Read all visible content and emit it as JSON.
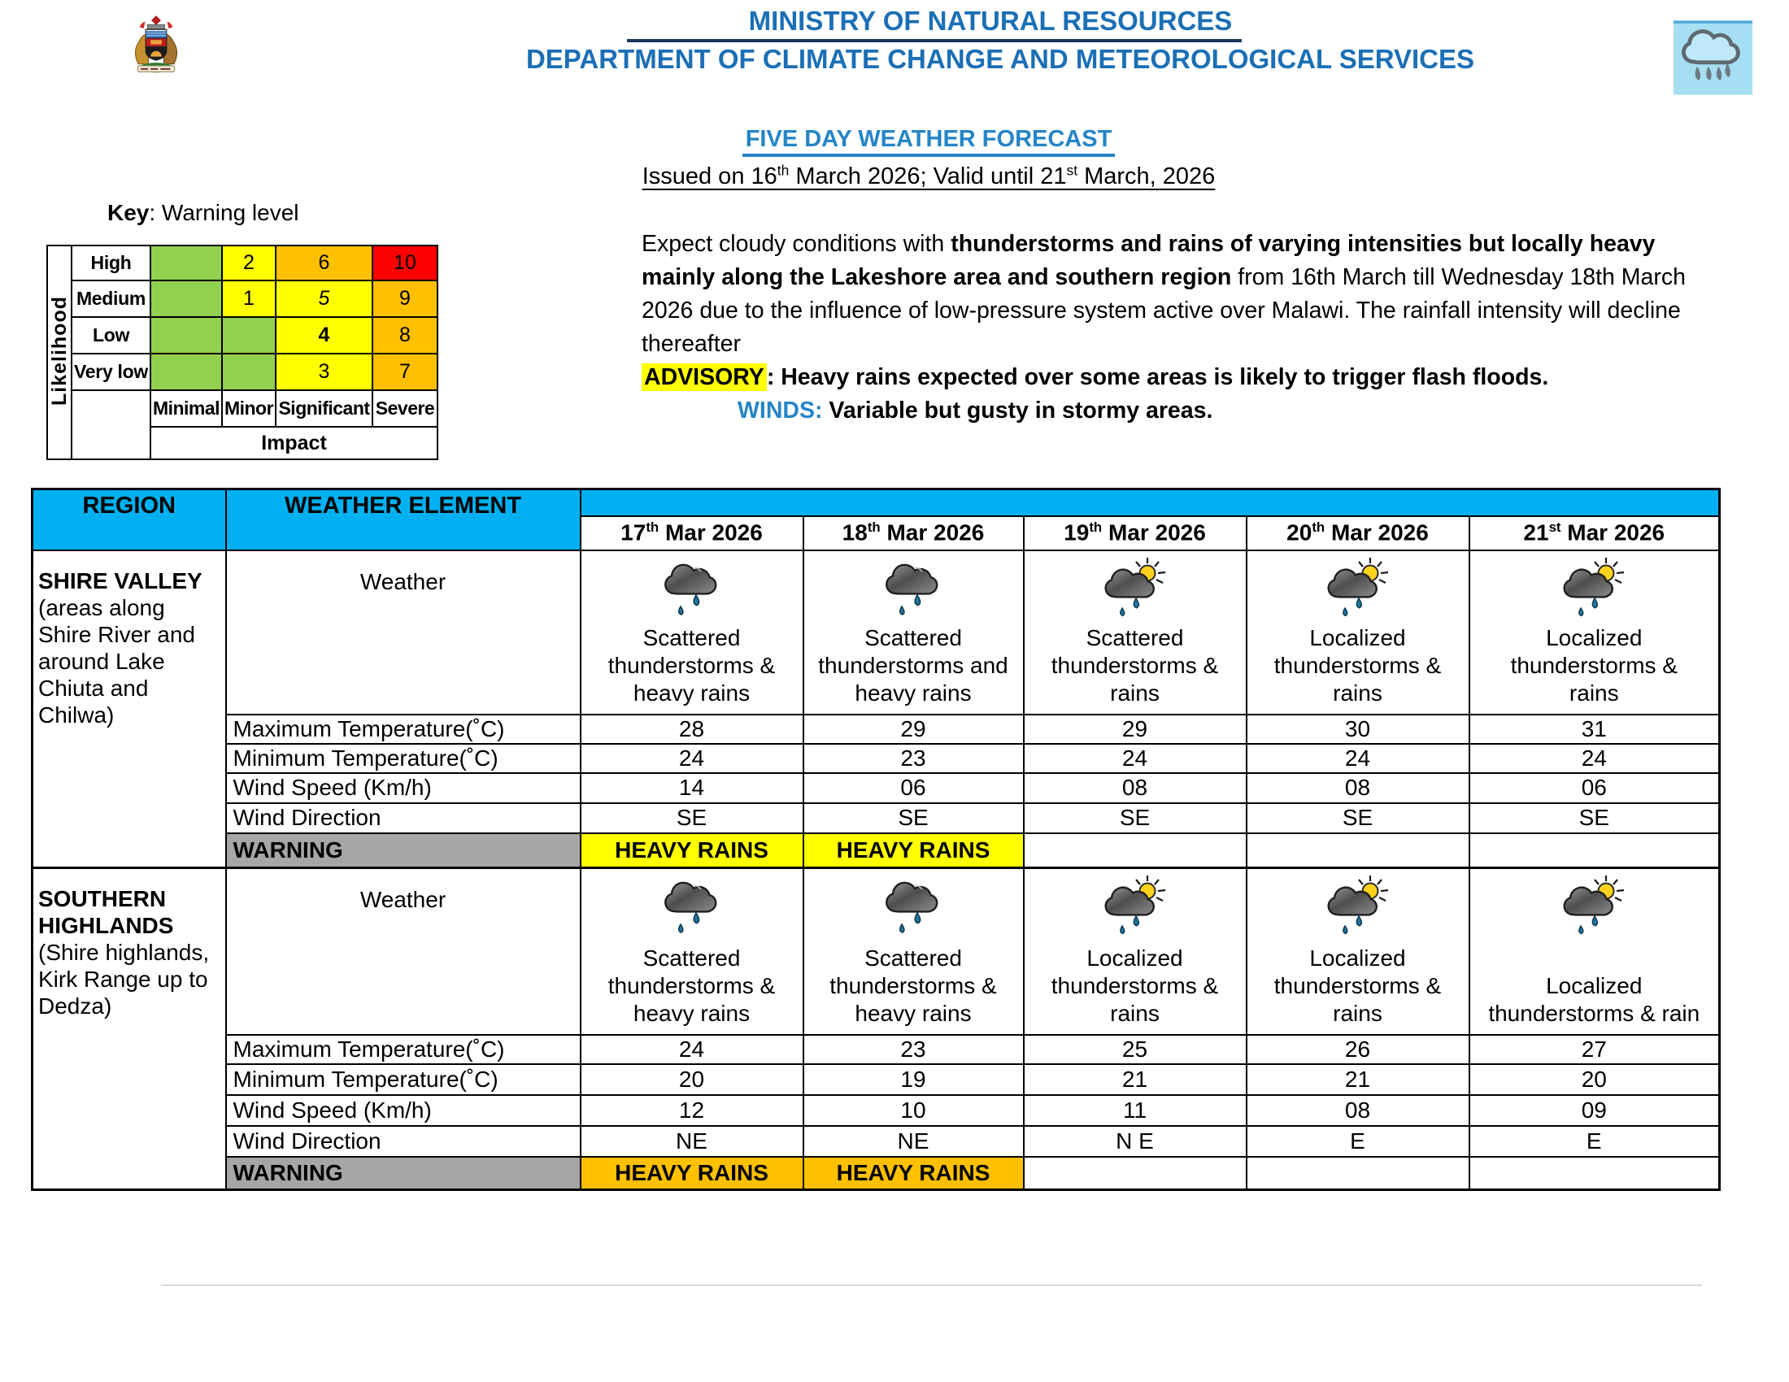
{
  "colors": {
    "ministry_blue": "#1B6FB5",
    "accent_blue": "#2585C7",
    "header_blue": "#00B0F0",
    "highlight_yellow": "#FFFF00",
    "warning_gray": "#A6A6A6"
  },
  "header": {
    "ministry": "MINISTRY OF NATURAL RESOURCES",
    "department": "DEPARTMENT OF CLIMATE CHANGE AND METEOROLOGICAL SERVICES"
  },
  "title": {
    "forecast": "FIVE DAY WEATHER FORECAST",
    "issued_parts": [
      {
        "text": "Issued on 16"
      },
      {
        "sup": "th"
      },
      {
        "text": " March 2026; Valid until 21"
      },
      {
        "sup": "st"
      },
      {
        "text": " March, 2026"
      }
    ]
  },
  "key": {
    "label_bold": "Key",
    "label_rest": ": Warning level",
    "likelihood_axis": "Likelihood",
    "impact_axis": "Impact",
    "impact_labels": [
      "Minimal",
      "Minor",
      "Significant",
      "Severe"
    ],
    "colors": {
      "green": "#92D050",
      "yellow": "#FFFF00",
      "orange": "#FFC000",
      "red": "#FF0000"
    },
    "rows": [
      {
        "label": "High",
        "cells": [
          {
            "text": "",
            "bg": "green"
          },
          {
            "text": "2",
            "bg": "yellow"
          },
          {
            "text": "6",
            "bg": "orange"
          },
          {
            "text": "10",
            "bg": "red"
          }
        ]
      },
      {
        "label": "Medium",
        "cells": [
          {
            "text": "",
            "bg": "green"
          },
          {
            "text": "1",
            "bg": "yellow"
          },
          {
            "text": "5",
            "bg": "yellow",
            "italic": true
          },
          {
            "text": "9",
            "bg": "orange"
          }
        ]
      },
      {
        "label": "Low",
        "cells": [
          {
            "text": "",
            "bg": "green"
          },
          {
            "text": "",
            "bg": "green"
          },
          {
            "text": "4",
            "bg": "yellow",
            "bold": true
          },
          {
            "text": "8",
            "bg": "orange"
          }
        ]
      },
      {
        "label": "Very low",
        "cells": [
          {
            "text": "",
            "bg": "green"
          },
          {
            "text": "",
            "bg": "green"
          },
          {
            "text": "3",
            "bg": "yellow"
          },
          {
            "text": "7",
            "bg": "orange"
          }
        ]
      }
    ]
  },
  "summary": {
    "paragraph_parts": [
      {
        "text": "Expect cloudy conditions with "
      },
      {
        "text": "thunderstorms and rains of varying intensities but locally heavy mainly along the Lakeshore area and southern region",
        "bold": true
      },
      {
        "text": " from 16th March till Wednesday 18th March 2026 due to the influence of low-pressure system active over Malawi. The rainfall intensity will decline thereafter"
      }
    ],
    "advisory_label": "ADVISORY",
    "advisory_text": ": Heavy rains expected over some areas is likely to trigger flash floods.",
    "winds_label": "WINDS:",
    "winds_text": "Variable but gusty in stormy areas."
  },
  "table": {
    "region_header": "REGION",
    "element_header": "WEATHER ELEMENT",
    "dates": [
      {
        "day": "17",
        "suffix": "th",
        "rest": " Mar 2026"
      },
      {
        "day": "18",
        "suffix": "th",
        "rest": " Mar 2026"
      },
      {
        "day": "19",
        "suffix": "th",
        "rest": " Mar 2026"
      },
      {
        "day": "20",
        "suffix": "th",
        "rest": " Mar 2026"
      },
      {
        "day": "21",
        "suffix": "st",
        "rest": " Mar 2026"
      }
    ],
    "row_labels": {
      "weather": "Weather",
      "max_temp": "Maximum Temperature(˚C)",
      "min_temp": "Minimum Temperature(˚C)",
      "wind_speed": "Wind Speed (Km/h)",
      "wind_dir": "Wind Direction",
      "warning": "WARNING"
    },
    "regions": [
      {
        "name": "SHIRE VALLEY",
        "description": "(areas along\nShire River and\naround Lake\nChiuta and\nChilwa)",
        "days": [
          {
            "icon": "rain-cloud",
            "desc": "Scattered\nthunderstorms &\nheavy rains"
          },
          {
            "icon": "rain-cloud",
            "desc": "Scattered\nthunderstorms and\nheavy rains"
          },
          {
            "icon": "sun-cloud-rain",
            "desc": "Scattered\nthunderstorms &\nrains"
          },
          {
            "icon": "sun-cloud-rain",
            "desc": "Localized\nthunderstorms &\nrains"
          },
          {
            "icon": "sun-cloud-rain",
            "desc": "Localized\nthunderstorms &\nrains"
          }
        ],
        "max_temp": [
          "28",
          "29",
          "29",
          "30",
          "31"
        ],
        "min_temp": [
          "24",
          "23",
          "24",
          "24",
          "24"
        ],
        "wind_speed": [
          "14",
          "06",
          "08",
          "08",
          "06"
        ],
        "wind_dir": [
          "SE",
          "SE",
          "SE",
          "SE",
          "SE"
        ],
        "warnings": [
          {
            "text": "HEAVY RAINS",
            "bg": "#FFFF00"
          },
          {
            "text": "HEAVY RAINS",
            "bg": "#FFFF00"
          },
          {
            "text": ""
          },
          {
            "text": ""
          },
          {
            "text": ""
          }
        ]
      },
      {
        "name": "SOUTHERN\nHIGHLANDS",
        "description": "(Shire highlands,\nKirk Range up to\nDedza)",
        "days": [
          {
            "icon": "rain-cloud",
            "desc": "Scattered\nthunderstorms &\nheavy rains"
          },
          {
            "icon": "rain-cloud",
            "desc": "Scattered\nthunderstorms &\nheavy rains"
          },
          {
            "icon": "sun-cloud-rain",
            "desc": "Localized\nthunderstorms &\nrains"
          },
          {
            "icon": "sun-cloud-rain",
            "desc": "Localized\nthunderstorms &\nrains"
          },
          {
            "icon": "sun-cloud-rain",
            "desc": "Localized\nthunderstorms & rain"
          }
        ],
        "max_temp": [
          "24",
          "23",
          "25",
          "26",
          "27"
        ],
        "min_temp": [
          "20",
          "19",
          "21",
          "21",
          "20"
        ],
        "wind_speed": [
          "12",
          "10",
          "11",
          "08",
          "09"
        ],
        "wind_dir": [
          "NE",
          "NE",
          "N E",
          "E",
          "E"
        ],
        "warnings": [
          {
            "text": "HEAVY RAINS",
            "bg": "#FFC000"
          },
          {
            "text": "HEAVY RAINS",
            "bg": "#FFC000"
          },
          {
            "text": ""
          },
          {
            "text": ""
          },
          {
            "text": ""
          }
        ]
      }
    ]
  }
}
